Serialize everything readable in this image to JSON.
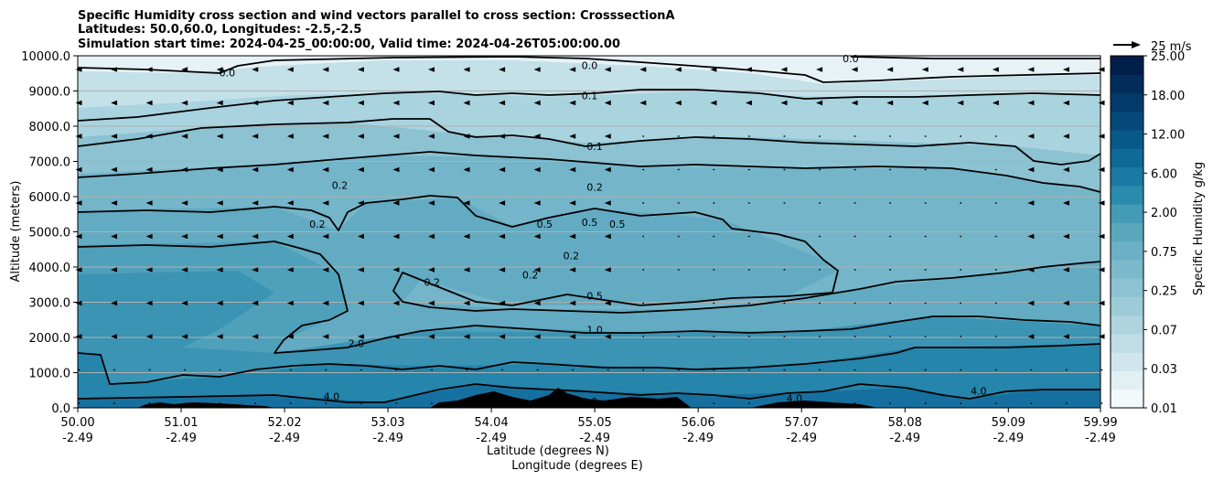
{
  "title_lines": [
    "Specific Humidity cross section and wind vectors parallel to cross section: CrosssectionA",
    "Latitudes: 50.0,60.0, Longitudes: -2.5,-2.5",
    "Simulation start time: 2024-04-25_00:00:00, Valid time: 2024-04-26T05:00:00.00"
  ],
  "quiver_key_label": "25 m/s",
  "chart_data": {
    "type": "heatmap",
    "ylabel": "Altitude (meters)",
    "xlabel_lines": [
      "Latitude (degrees N)",
      "Longitude (degrees E)"
    ],
    "x_ticks": [
      {
        "lat": "50.00",
        "lon": "-2.49"
      },
      {
        "lat": "51.01",
        "lon": "-2.49"
      },
      {
        "lat": "52.02",
        "lon": "-2.49"
      },
      {
        "lat": "53.03",
        "lon": "-2.49"
      },
      {
        "lat": "54.04",
        "lon": "-2.49"
      },
      {
        "lat": "55.05",
        "lon": "-2.49"
      },
      {
        "lat": "56.06",
        "lon": "-2.49"
      },
      {
        "lat": "57.07",
        "lon": "-2.49"
      },
      {
        "lat": "58.08",
        "lon": "-2.49"
      },
      {
        "lat": "59.09",
        "lon": "-2.49"
      },
      {
        "lat": "59.99",
        "lon": "-2.49"
      }
    ],
    "xlim": [
      50.0,
      59.99
    ],
    "y_ticks": [
      "0.0",
      "1000.0",
      "2000.0",
      "3000.0",
      "4000.0",
      "5000.0",
      "6000.0",
      "7000.0",
      "8000.0",
      "9000.0",
      "10000.0"
    ],
    "ylim": [
      0,
      10000
    ],
    "grid": "horizontal",
    "colorbar": {
      "label": "Specific Humidity g/kg",
      "tick_labels": [
        "0.01",
        "0.03",
        "0.07",
        "0.25",
        "0.75",
        "2.00",
        "6.00",
        "12.00",
        "18.00",
        "25.00"
      ],
      "levels": [
        "0.01",
        "0.02",
        "0.03",
        "0.05",
        "0.07",
        "0.1",
        "0.25",
        "0.5",
        "0.75",
        "1.0",
        "2.00",
        "4.0",
        "6.00",
        "9.0",
        "12.00",
        "15.0",
        "18.00",
        "21.0",
        "25.00"
      ],
      "colors": [
        "#f3f8fa",
        "#e2eff3",
        "#d1e6ec",
        "#c0dde6",
        "#afd4df",
        "#9ecbd8",
        "#8dc2d2",
        "#7cb9cb",
        "#6bb0c4",
        "#5aa7bd",
        "#449bb6",
        "#2a8bad",
        "#1a7aa3",
        "#0f6a98",
        "#07598a",
        "#05497a",
        "#033a6a",
        "#022c59",
        "#011d4a"
      ]
    },
    "contour_levels": [
      "0.0",
      "0.1",
      "0.2",
      "0.5",
      "1.0",
      "2.0",
      "4.0"
    ],
    "contour_labels": [
      {
        "text": "0.0",
        "lat": 51.46,
        "alt": 9500
      },
      {
        "text": "0.0",
        "lat": 55.0,
        "alt": 9700
      },
      {
        "text": "0.0",
        "lat": 57.55,
        "alt": 9900
      },
      {
        "text": "0.1",
        "lat": 55.0,
        "alt": 8850
      },
      {
        "text": "0.1",
        "lat": 55.05,
        "alt": 7400
      },
      {
        "text": "0.2",
        "lat": 55.05,
        "alt": 6250
      },
      {
        "text": "0.2",
        "lat": 52.56,
        "alt": 6300
      },
      {
        "text": "0.2",
        "lat": 52.34,
        "alt": 5200
      },
      {
        "text": "0.2",
        "lat": 53.46,
        "alt": 3550
      },
      {
        "text": "0.2",
        "lat": 54.42,
        "alt": 3750
      },
      {
        "text": "0.2",
        "lat": 54.82,
        "alt": 4300
      },
      {
        "text": "0.5",
        "lat": 54.56,
        "alt": 5200
      },
      {
        "text": "0.5",
        "lat": 55.0,
        "alt": 5250
      },
      {
        "text": "0.5",
        "lat": 55.27,
        "alt": 5200
      },
      {
        "text": "0.5",
        "lat": 55.05,
        "alt": 3150
      },
      {
        "text": "1.0",
        "lat": 55.05,
        "alt": 2200
      },
      {
        "text": "2.0",
        "lat": 52.72,
        "alt": 1800
      },
      {
        "text": "4.0",
        "lat": 52.48,
        "alt": 300
      },
      {
        "text": "4.0",
        "lat": 55.0,
        "alt": 150
      },
      {
        "text": "4.0",
        "lat": 57.0,
        "alt": 250
      },
      {
        "text": "4.0",
        "lat": 58.8,
        "alt": 450
      }
    ],
    "quiver": {
      "key_speed": 25,
      "unit": "m/s",
      "direction": "southward aloft, weak near surface"
    }
  }
}
